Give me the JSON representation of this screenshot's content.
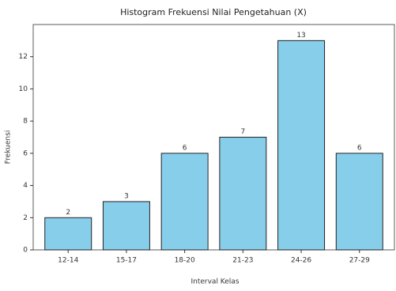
{
  "chart_data": {
    "type": "bar",
    "title": "Histogram Frekuensi Nilai Pengetahuan (X)",
    "x_label": "Interval Kelas",
    "y_label": "Frekuensi",
    "categories": [
      "12-14",
      "15-17",
      "18-20",
      "21-23",
      "24-26",
      "27-29"
    ],
    "values": [
      2,
      3,
      6,
      7,
      13,
      6
    ],
    "color": "#87ceeb",
    "edge_color": "#222222",
    "ylim": [
      0,
      14
    ],
    "yticks": [
      0,
      2,
      4,
      6,
      8,
      10,
      12
    ],
    "grid": false,
    "data_labels": true
  }
}
